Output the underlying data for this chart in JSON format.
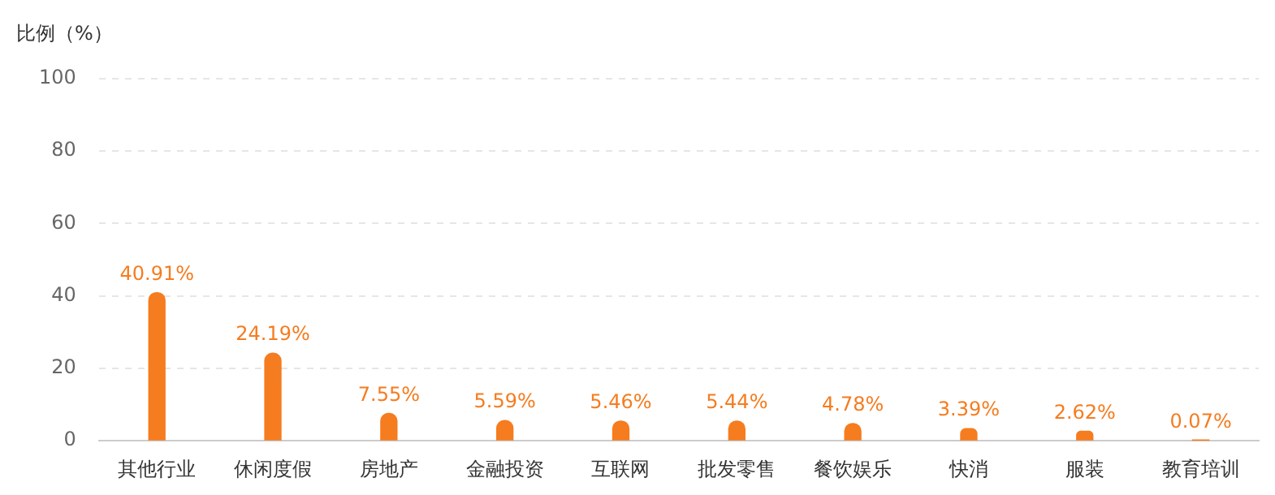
{
  "chart_data": {
    "type": "bar",
    "ylabel": "比例（%）",
    "categories": [
      "其他行业",
      "休闲度假",
      "房地产",
      "金融投资",
      "互联网",
      "批发零售",
      "餐饮娱乐",
      "快消",
      "服装",
      "教育培训"
    ],
    "values": [
      40.91,
      24.19,
      7.55,
      5.59,
      5.46,
      5.44,
      4.78,
      3.39,
      2.62,
      0.07
    ],
    "value_labels": [
      "40.91%",
      "24.19%",
      "7.55%",
      "5.59%",
      "5.46%",
      "5.44%",
      "4.78%",
      "3.39%",
      "2.62%",
      "0.07%"
    ],
    "color": "#f57c1f",
    "ylim": [
      0,
      100
    ],
    "yticks": [
      0,
      20,
      40,
      60,
      80,
      100
    ],
    "grid": "y",
    "legend": false
  }
}
